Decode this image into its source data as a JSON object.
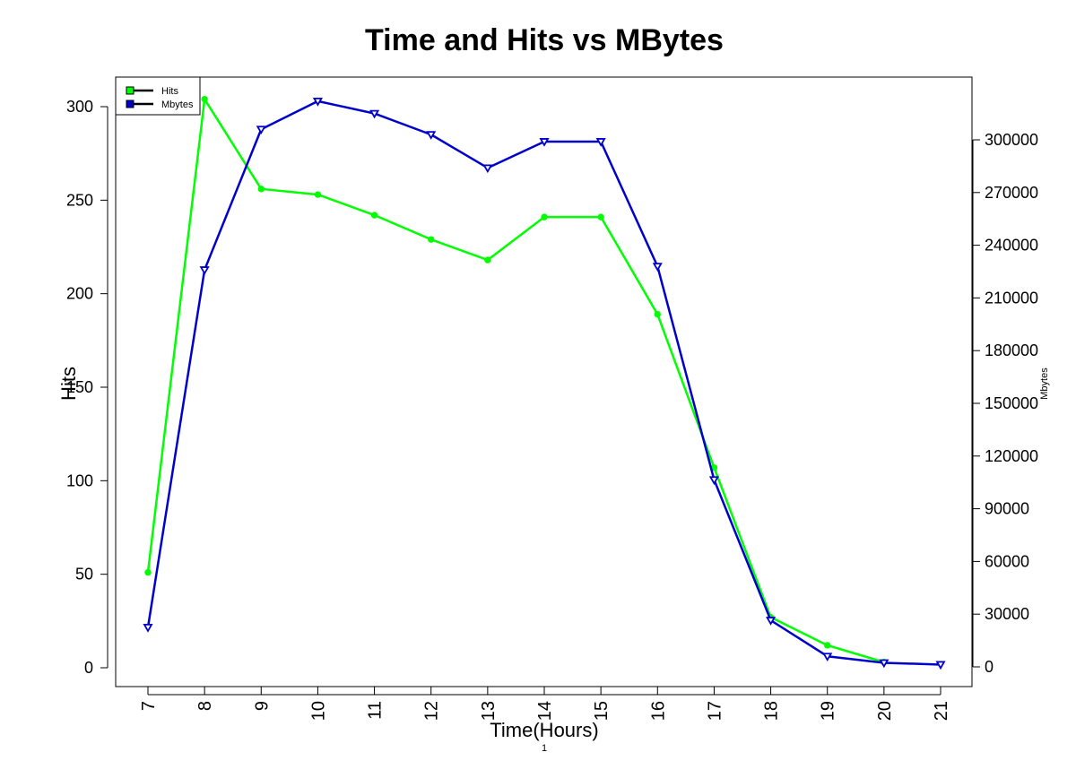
{
  "chart_data": {
    "type": "line",
    "title": "Time and Hits vs MBytes",
    "xlabel": "Time(Hours)",
    "ylabel": "Hits",
    "y2label": "Mbytes",
    "footnote": "1",
    "x": [
      7,
      8,
      9,
      10,
      11,
      12,
      13,
      14,
      15,
      16,
      17,
      18,
      19,
      20,
      21
    ],
    "ylim": [
      0,
      300
    ],
    "y_ticks": [
      0,
      50,
      100,
      150,
      200,
      250,
      300
    ],
    "y2_ticks": [
      0,
      30000,
      60000,
      90000,
      120000,
      150000,
      180000,
      210000,
      240000,
      270000,
      300000
    ],
    "legend_position": "top-left",
    "grid": false,
    "series": [
      {
        "name": "Hits",
        "axis": "left",
        "color": "#00ff00",
        "marker": "circle",
        "values": [
          51,
          304,
          256,
          253,
          242,
          229,
          218,
          241,
          241,
          189,
          107,
          27,
          12,
          3,
          null
        ]
      },
      {
        "name": "Mbytes",
        "axis": "right",
        "color": "#0000cd",
        "marker": "triangle-down",
        "values": [
          22500,
          226000,
          306000,
          322000,
          315000,
          303000,
          284000,
          299000,
          299000,
          228000,
          106500,
          26500,
          6000,
          2300,
          1300
        ]
      }
    ]
  }
}
